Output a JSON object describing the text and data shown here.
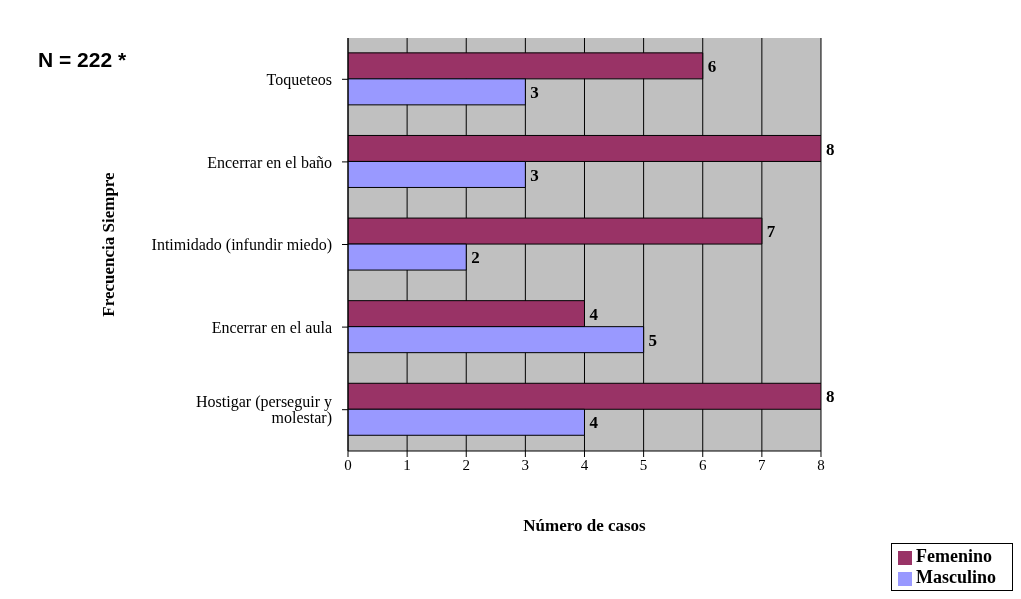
{
  "chart_data": {
    "type": "bar",
    "orientation": "horizontal",
    "ylabel": "Frecuencia Siempre",
    "xlabel": "Número de casos",
    "categories": [
      "Toqueteos",
      "Encerrar en el baño",
      "Intimidado (infundir miedo)",
      "Encerrar en el aula",
      "Hostigar (perseguir y molestar)"
    ],
    "series": [
      {
        "name": "Femenino",
        "color": "#993366",
        "values": [
          6,
          8,
          7,
          4,
          8
        ]
      },
      {
        "name": "Masculino",
        "color": "#9999ff",
        "values": [
          3,
          3,
          2,
          5,
          4
        ]
      }
    ],
    "xlim": [
      0,
      8
    ],
    "xticks": [
      0,
      1,
      2,
      3,
      4,
      5,
      6,
      7,
      8
    ],
    "grid": "x",
    "legend": "bottom right",
    "data_labels": true,
    "annotations": [
      "N = 222 *"
    ]
  }
}
